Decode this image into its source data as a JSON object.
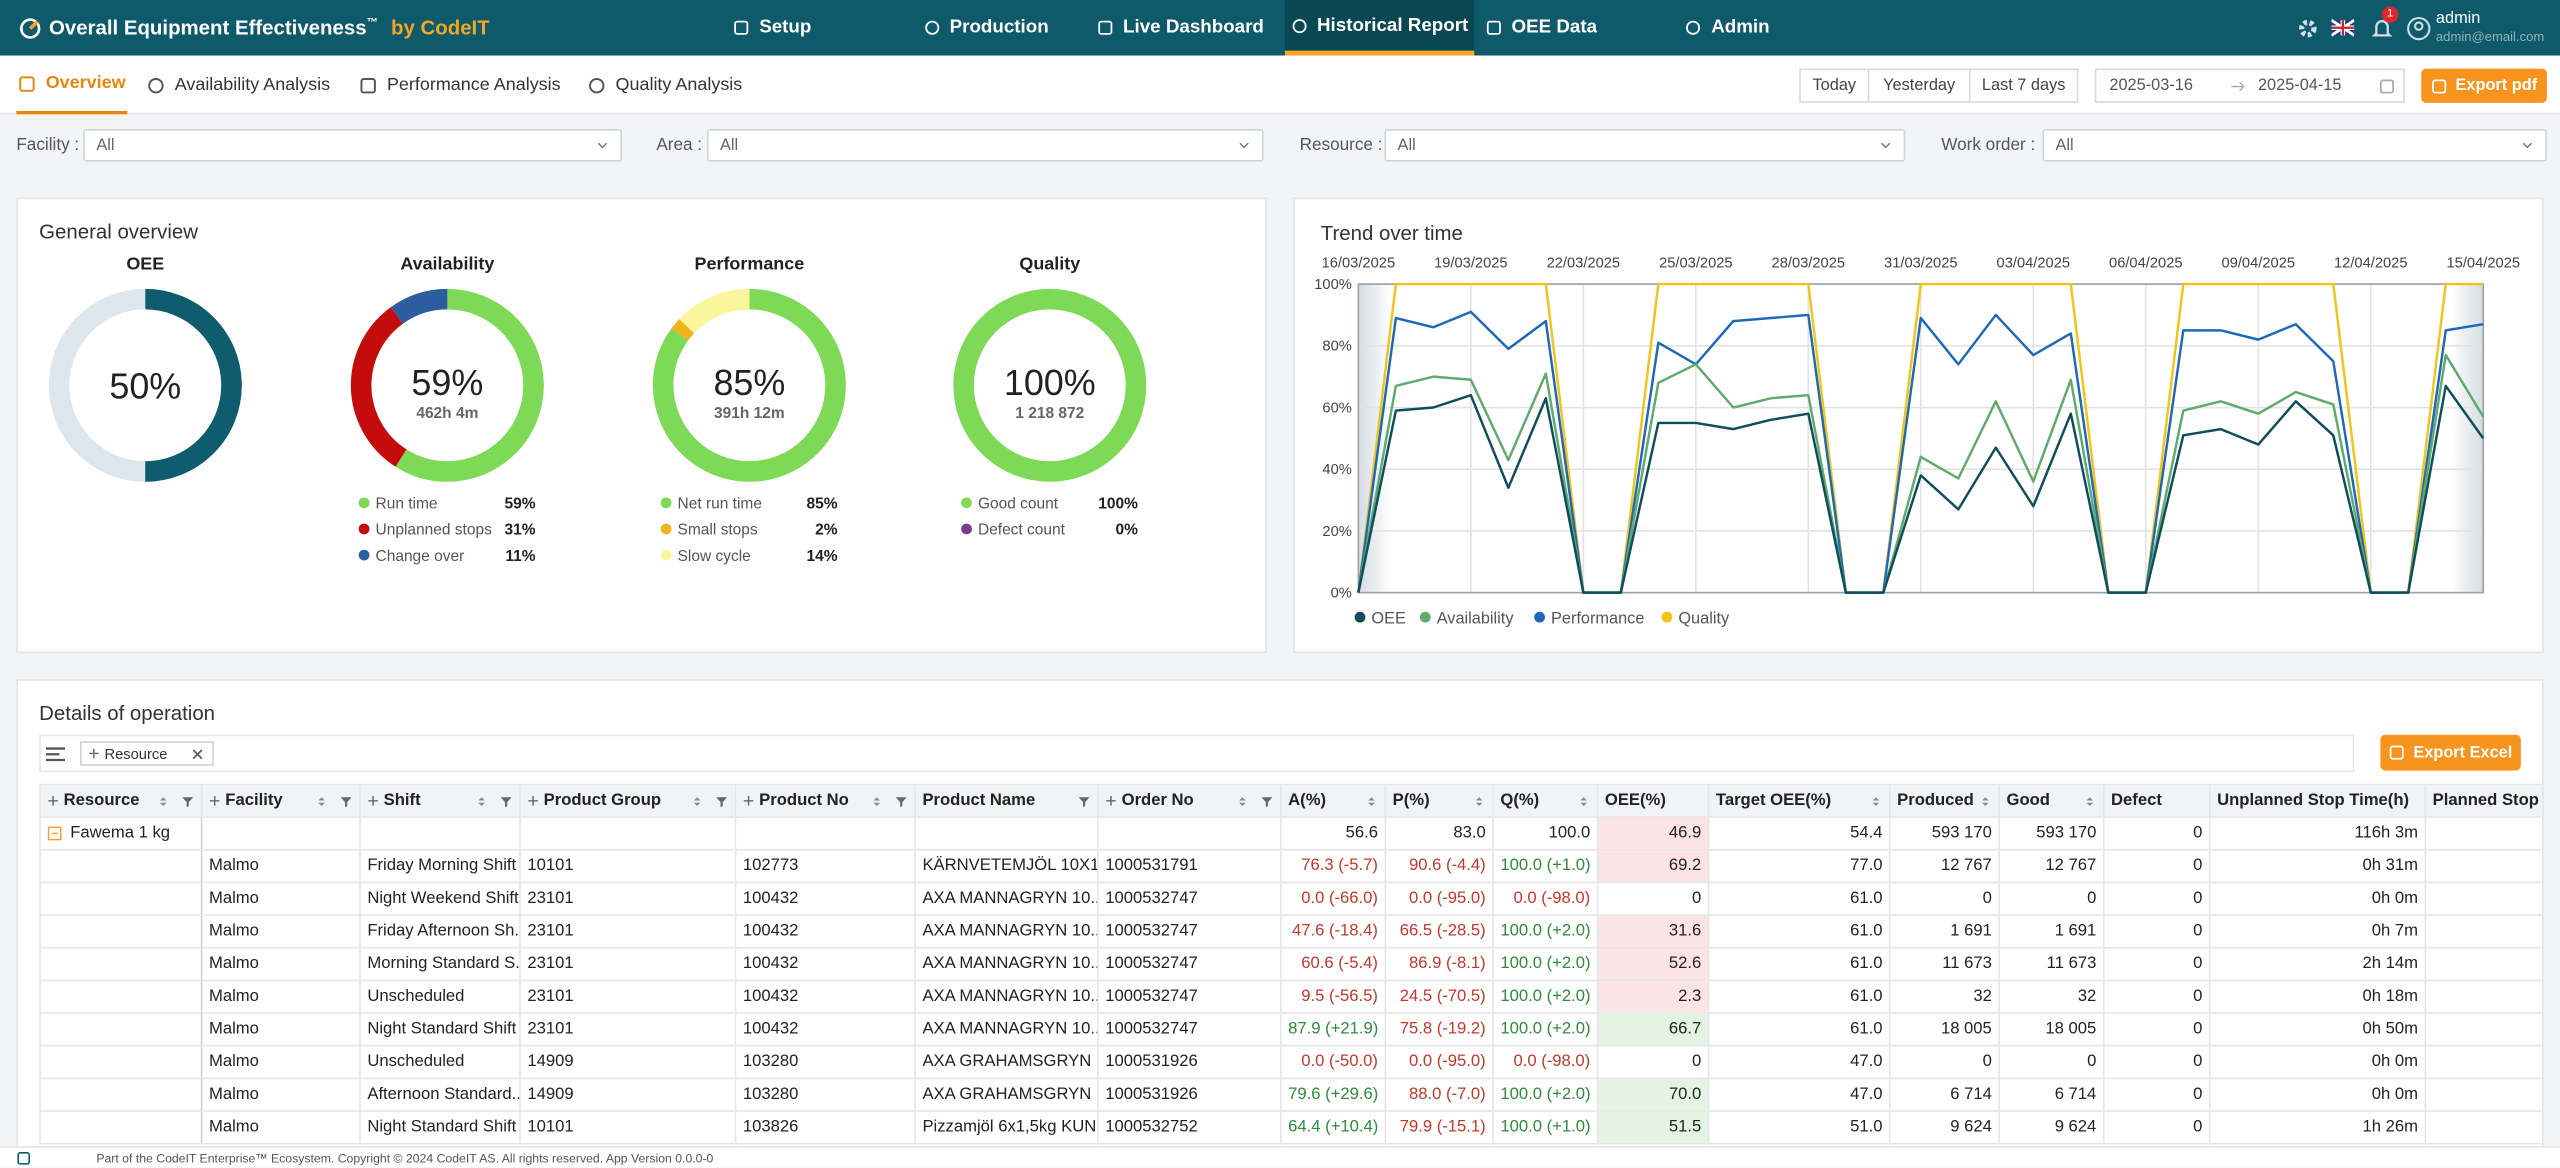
{
  "header": {
    "title": "Overall Equipment Effectiveness",
    "trademark": "™",
    "brand": "by CodeIT",
    "nav": [
      "Setup",
      "Production",
      "Live Dashboard",
      "Historical Report",
      "OEE Data",
      "Admin"
    ],
    "active_nav": 3,
    "notifications": 1,
    "user": "admin",
    "email": "admin@email.com"
  },
  "tabs": {
    "items": [
      "Overview",
      "Availability Analysis",
      "Performance Analysis",
      "Quality Analysis"
    ],
    "active": 0
  },
  "dates": {
    "presets": [
      "Today",
      "Yesterday",
      "Last 7 days"
    ],
    "from": "2025-03-16",
    "to": "2025-04-15",
    "export": "Export pdf"
  },
  "filters": [
    {
      "label": "Facility :",
      "value": "All"
    },
    {
      "label": "Area :",
      "value": "All"
    },
    {
      "label": "Resource :",
      "value": "All"
    },
    {
      "label": "Work order :",
      "value": "All"
    }
  ],
  "overview": {
    "title": "General overview",
    "gauges": [
      {
        "title": "OEE",
        "label": "50%",
        "track": "#dde6ed",
        "segments": [
          {
            "value": 50,
            "color": "#0f5c6e"
          }
        ]
      },
      {
        "title": "Availability",
        "label": "59%",
        "sub": "462h 4m",
        "segments": [
          {
            "name": "Run time",
            "value": 59,
            "value_label": "59%",
            "color": "#7ed957"
          },
          {
            "name": "Unplanned stops",
            "value": 31,
            "value_label": "31%",
            "color": "#c40c0c"
          },
          {
            "name": "Change over",
            "value": 11,
            "value_label": "11%",
            "color": "#2c5d9e"
          }
        ]
      },
      {
        "title": "Performance",
        "label": "85%",
        "sub": "391h 12m",
        "segments": [
          {
            "name": "Net run time",
            "value": 85,
            "value_label": "85%",
            "color": "#7ed957"
          },
          {
            "name": "Small stops",
            "value": 2,
            "value_label": "2%",
            "color": "#f0b31c"
          },
          {
            "name": "Slow cycle",
            "value": 14,
            "value_label": "14%",
            "color": "#fbf59c"
          }
        ]
      },
      {
        "title": "Quality",
        "label": "100%",
        "sub": "1 218 872",
        "segments": [
          {
            "name": "Good count",
            "value": 100,
            "value_label": "100%",
            "color": "#7ed957"
          },
          {
            "name": "Defect count",
            "value": 0,
            "value_label": "0%",
            "color": "#7a3d8e"
          }
        ]
      }
    ]
  },
  "chart_data": {
    "type": "line",
    "title": "Trend over time",
    "x": [
      "16/03/2025",
      "17/03/2025",
      "18/03/2025",
      "19/03/2025",
      "20/03/2025",
      "21/03/2025",
      "22/03/2025",
      "23/03/2025",
      "24/03/2025",
      "25/03/2025",
      "26/03/2025",
      "27/03/2025",
      "28/03/2025",
      "29/03/2025",
      "30/03/2025",
      "31/03/2025",
      "01/04/2025",
      "02/04/2025",
      "03/04/2025",
      "04/04/2025",
      "05/04/2025",
      "06/04/2025",
      "07/04/2025",
      "08/04/2025",
      "09/04/2025",
      "10/04/2025",
      "11/04/2025",
      "12/04/2025",
      "13/04/2025",
      "14/04/2025",
      "15/04/2025"
    ],
    "xticks": [
      "16/03/2025",
      "19/03/2025",
      "22/03/2025",
      "25/03/2025",
      "28/03/2025",
      "31/03/2025",
      "03/04/2025",
      "06/04/2025",
      "09/04/2025",
      "12/04/2025",
      "15/04/2025"
    ],
    "ylim": [
      0,
      100
    ],
    "yticks": [
      {
        "value": 0,
        "label": "0%"
      },
      {
        "value": 20,
        "label": "20%"
      },
      {
        "value": 40,
        "label": "40%"
      },
      {
        "value": 60,
        "label": "60%"
      },
      {
        "value": 80,
        "label": "80%"
      },
      {
        "value": 100,
        "label": "100%"
      }
    ],
    "grid": true,
    "series": [
      {
        "name": "OEE",
        "color": "#0f4d5c",
        "values": [
          0,
          59,
          60,
          64,
          34,
          63,
          0,
          0,
          55,
          55,
          53,
          56,
          58,
          0,
          0,
          38,
          27,
          47,
          28,
          58,
          0,
          0,
          51,
          53,
          48,
          62,
          51,
          0,
          0,
          67,
          50
        ]
      },
      {
        "name": "Availability",
        "color": "#5faa6c",
        "values": [
          0,
          67,
          70,
          69,
          43,
          71,
          0,
          0,
          68,
          74,
          60,
          63,
          64,
          0,
          0,
          44,
          37,
          62,
          36,
          69,
          0,
          0,
          59,
          62,
          58,
          65,
          61,
          0,
          0,
          77,
          57
        ]
      },
      {
        "name": "Performance",
        "color": "#1e68b8",
        "values": [
          0,
          89,
          86,
          91,
          79,
          88,
          0,
          0,
          81,
          74,
          88,
          89,
          90,
          0,
          0,
          89,
          74,
          90,
          77,
          84,
          0,
          0,
          85,
          85,
          82,
          87,
          75,
          0,
          0,
          85,
          87
        ]
      },
      {
        "name": "Quality",
        "color": "#f0c419",
        "values": [
          0,
          100,
          100,
          100,
          100,
          100,
          0,
          0,
          100,
          100,
          100,
          100,
          100,
          0,
          0,
          100,
          100,
          100,
          100,
          100,
          0,
          0,
          100,
          100,
          100,
          100,
          100,
          0,
          0,
          100,
          100
        ]
      }
    ]
  },
  "details": {
    "title": "Details of operation",
    "group_chip": "Resource",
    "export": "Export Excel",
    "columns": [
      "Resource",
      "Facility",
      "Shift",
      "Product Group",
      "Product No",
      "Product Name",
      "Order No",
      "A(%)",
      "P(%)",
      "Q(%)",
      "OEE(%)",
      "Target OEE(%)",
      "Produced",
      "Good",
      "Defect",
      "Unplanned Stop Time(h)",
      "Planned Stop"
    ],
    "group": {
      "label": "Fawema 1 kg",
      "values": [
        "56.6",
        "83.0",
        "100.0",
        "46.9",
        "54.4",
        "593 170",
        "593 170",
        "0",
        "116h 3m"
      ]
    },
    "rows": [
      [
        "Malmo",
        "Friday Morning Shift",
        "10101",
        "102773",
        "KÄRNVETEMJÖL 10X1...",
        "1000531791",
        "76.3 (-5.7)",
        "90.6 (-4.4)",
        "100.0 (+1.0)",
        "69.2",
        "77.0",
        "12 767",
        "12 767",
        "0",
        "0h 31m"
      ],
      [
        "Malmo",
        "Night Weekend Shift",
        "23101",
        "100432",
        "AXA MANNAGRYN 10...",
        "1000532747",
        "0.0 (-66.0)",
        "0.0 (-95.0)",
        "0.0 (-98.0)",
        "0",
        "61.0",
        "0",
        "0",
        "0",
        "0h 0m"
      ],
      [
        "Malmo",
        "Friday Afternoon Sh...",
        "23101",
        "100432",
        "AXA MANNAGRYN 10...",
        "1000532747",
        "47.6 (-18.4)",
        "66.5 (-28.5)",
        "100.0 (+2.0)",
        "31.6",
        "61.0",
        "1 691",
        "1 691",
        "0",
        "0h 7m"
      ],
      [
        "Malmo",
        "Morning Standard S...",
        "23101",
        "100432",
        "AXA MANNAGRYN 10...",
        "1000532747",
        "60.6 (-5.4)",
        "86.9 (-8.1)",
        "100.0 (+2.0)",
        "52.6",
        "61.0",
        "11 673",
        "11 673",
        "0",
        "2h 14m"
      ],
      [
        "Malmo",
        "Unscheduled",
        "23101",
        "100432",
        "AXA MANNAGRYN 10...",
        "1000532747",
        "9.5 (-56.5)",
        "24.5 (-70.5)",
        "100.0 (+2.0)",
        "2.3",
        "61.0",
        "32",
        "32",
        "0",
        "0h 18m"
      ],
      [
        "Malmo",
        "Night Standard Shift",
        "23101",
        "100432",
        "AXA MANNAGRYN 10...",
        "1000532747",
        "87.9 (+21.9)",
        "75.8 (-19.2)",
        "100.0 (+2.0)",
        "66.7",
        "61.0",
        "18 005",
        "18 005",
        "0",
        "0h 50m"
      ],
      [
        "Malmo",
        "Unscheduled",
        "14909",
        "103280",
        "AXA GRAHAMSGRYN ...",
        "1000531926",
        "0.0 (-50.0)",
        "0.0 (-95.0)",
        "0.0 (-98.0)",
        "0",
        "47.0",
        "0",
        "0",
        "0",
        "0h 0m"
      ],
      [
        "Malmo",
        "Afternoon Standard...",
        "14909",
        "103280",
        "AXA GRAHAMSGRYN ...",
        "1000531926",
        "79.6 (+29.6)",
        "88.0 (-7.0)",
        "100.0 (+2.0)",
        "70.0",
        "47.0",
        "6 714",
        "6 714",
        "0",
        "0h 0m"
      ],
      [
        "Malmo",
        "Night Standard Shift",
        "10101",
        "103826",
        "Pizzamjöl 6x1,5kg KUN",
        "1000532752",
        "64.4 (+10.4)",
        "79.9 (-15.1)",
        "100.0 (+1.0)",
        "51.5",
        "51.0",
        "9 624",
        "9 624",
        "0",
        "1h 26m"
      ]
    ]
  },
  "footer": {
    "text": "Part of the CodeIT Enterprise™ Ecosystem. Copyright © 2024 CodeIT AS. All rights reserved. App Version 0.0.0-0"
  }
}
